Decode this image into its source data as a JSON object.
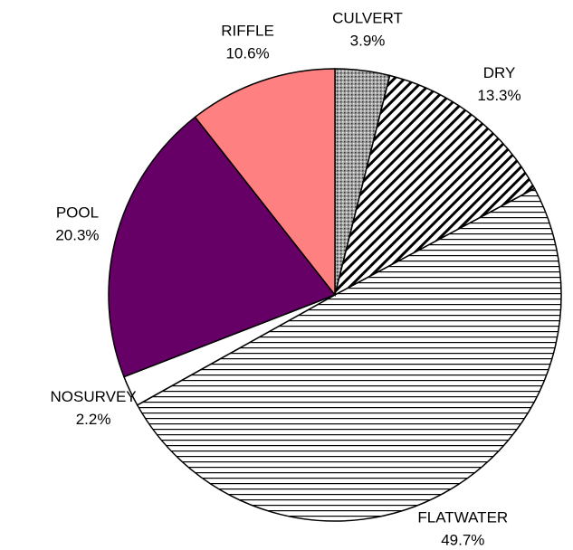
{
  "chart_data": {
    "type": "pie",
    "categories": [
      "CULVERT",
      "DRY",
      "FLATWATER",
      "NOSURVEY",
      "POOL",
      "RIFFLE"
    ],
    "values": [
      3.9,
      13.3,
      49.7,
      2.2,
      20.3,
      10.6
    ],
    "value_labels": [
      "3.9%",
      "13.3%",
      "49.7%",
      "2.2%",
      "20.3%",
      "10.6%"
    ],
    "colors": [
      "#a0a0a0",
      "#ffffff",
      "#ffffff",
      "#ffffff",
      "#660066",
      "#ff8080"
    ],
    "patterns": [
      "dots",
      "diagonal",
      "horizontal",
      "none",
      "none",
      "none"
    ]
  }
}
